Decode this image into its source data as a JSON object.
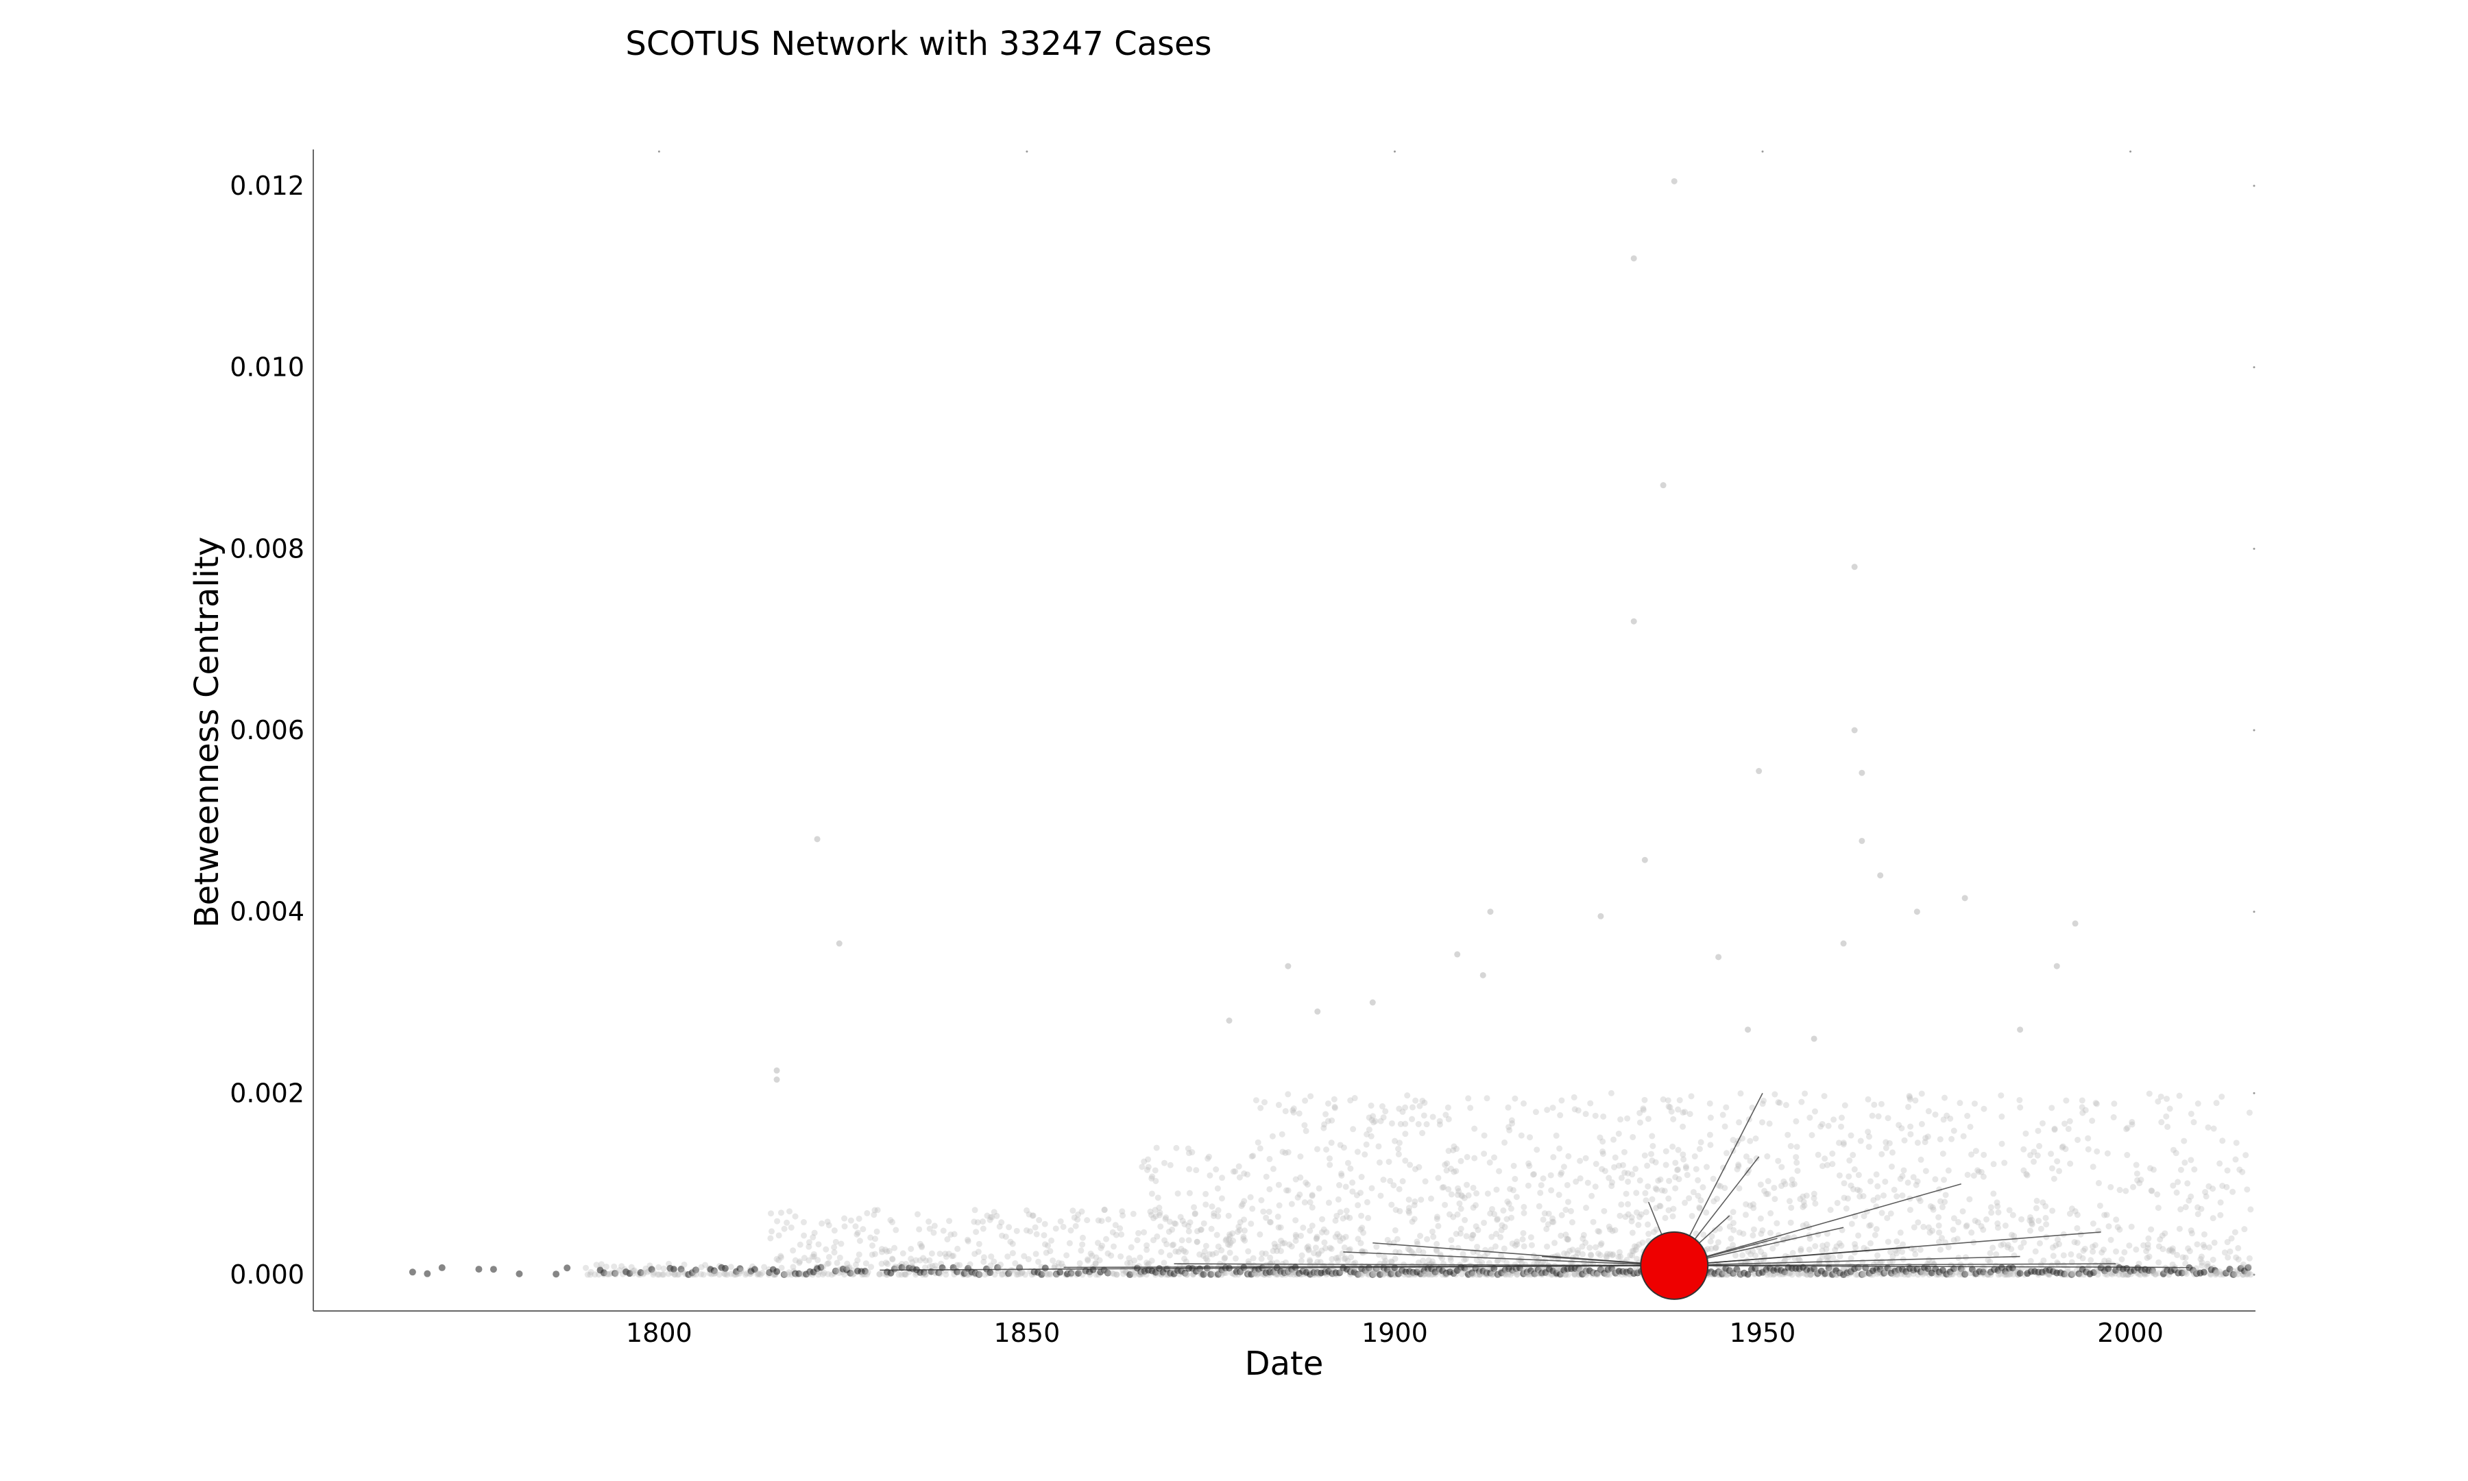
{
  "chart_data": {
    "type": "scatter",
    "title": "SCOTUS Network with 33247 Cases",
    "xlabel": "Date",
    "ylabel": "Betweenness Centrality",
    "xlim": [
      1753,
      2017
    ],
    "ylim": [
      -0.0004,
      0.0124
    ],
    "xticks": [
      1800,
      1850,
      1900,
      1950,
      2000
    ],
    "xtick_labels": [
      "1800",
      "1850",
      "1900",
      "1950",
      "2000"
    ],
    "yticks": [
      0.0,
      0.002,
      0.004,
      0.006,
      0.008,
      0.01,
      0.012
    ],
    "ytick_labels": [
      "0.000",
      "0.002",
      "0.004",
      "0.006",
      "0.008",
      "0.010",
      "0.012"
    ],
    "grid": false,
    "point_color": "#bbbbbb",
    "baseline_color": "#222222",
    "highlight_color": "#ee0000",
    "highlight": {
      "x": 1938,
      "y": 0.0001
    },
    "outliers": [
      {
        "x": 1938,
        "y": 0.01205
      },
      {
        "x": 1932.5,
        "y": 0.0112
      },
      {
        "x": 1936.5,
        "y": 0.0087
      },
      {
        "x": 1962.5,
        "y": 0.0078
      },
      {
        "x": 1932.5,
        "y": 0.0072
      },
      {
        "x": 1962.5,
        "y": 0.006
      },
      {
        "x": 1949.5,
        "y": 0.00555
      },
      {
        "x": 1963.5,
        "y": 0.00553
      },
      {
        "x": 1821.5,
        "y": 0.0048
      },
      {
        "x": 1963.5,
        "y": 0.00478
      },
      {
        "x": 1934,
        "y": 0.00457
      },
      {
        "x": 1966,
        "y": 0.0044
      },
      {
        "x": 1977.5,
        "y": 0.00415
      },
      {
        "x": 1913,
        "y": 0.004
      },
      {
        "x": 1971,
        "y": 0.004
      },
      {
        "x": 1928,
        "y": 0.00395
      },
      {
        "x": 1992.5,
        "y": 0.00387
      },
      {
        "x": 1961,
        "y": 0.00365
      },
      {
        "x": 1824.5,
        "y": 0.00365
      },
      {
        "x": 1908.5,
        "y": 0.00353
      },
      {
        "x": 1944,
        "y": 0.0035
      },
      {
        "x": 1885.5,
        "y": 0.0034
      },
      {
        "x": 1912,
        "y": 0.0033
      },
      {
        "x": 1990,
        "y": 0.0034
      },
      {
        "x": 1897,
        "y": 0.003
      },
      {
        "x": 1889.5,
        "y": 0.0029
      },
      {
        "x": 1877.5,
        "y": 0.0028
      },
      {
        "x": 1985,
        "y": 0.0027
      },
      {
        "x": 1957,
        "y": 0.0026
      },
      {
        "x": 1948,
        "y": 0.0027
      },
      {
        "x": 1816,
        "y": 0.00225
      },
      {
        "x": 1816,
        "y": 0.00215
      }
    ],
    "citation_lines": [
      {
        "x1": 1938,
        "y1": 0.0001,
        "x2": 1950,
        "y2": 0.002
      },
      {
        "x1": 1938,
        "y1": 0.0001,
        "x2": 1949.5,
        "y2": 0.0013
      },
      {
        "x1": 1938,
        "y1": 0.0001,
        "x2": 1977,
        "y2": 0.001
      },
      {
        "x1": 1938,
        "y1": 0.0001,
        "x2": 1945.5,
        "y2": 0.00065
      },
      {
        "x1": 1938,
        "y1": 0.0001,
        "x2": 1961,
        "y2": 0.00052
      },
      {
        "x1": 1938,
        "y1": 0.0001,
        "x2": 1996,
        "y2": 0.00047
      },
      {
        "x1": 1938,
        "y1": 0.0001,
        "x2": 1934.5,
        "y2": 0.0008
      },
      {
        "x1": 1938,
        "y1": 0.0001,
        "x2": 1952,
        "y2": 0.0004
      },
      {
        "x1": 1938,
        "y1": 0.0001,
        "x2": 1985,
        "y2": 0.0002
      },
      {
        "x1": 1938,
        "y1": 0.0001,
        "x2": 1893,
        "y2": 0.00025
      },
      {
        "x1": 1938,
        "y1": 0.0001,
        "x2": 1897,
        "y2": 0.00035
      },
      {
        "x1": 1938,
        "y1": 0.0001,
        "x2": 1920,
        "y2": 0.0002
      },
      {
        "x1": 1938,
        "y1": 0.0001,
        "x2": 1870,
        "y2": 0.00012
      },
      {
        "x1": 1938,
        "y1": 0.0001,
        "x2": 1855,
        "y2": 8e-05
      },
      {
        "x1": 1938,
        "y1": 0.0001,
        "x2": 1830,
        "y2": 5e-05
      },
      {
        "x1": 1938,
        "y1": 0.0001,
        "x2": 1998,
        "y2": 0.00012
      },
      {
        "x1": 1938,
        "y1": 0.0001,
        "x2": 2008,
        "y2": 8e-05
      },
      {
        "x1": 1938,
        "y1": 0.0001,
        "x2": 1970,
        "y2": 0.0003
      }
    ]
  }
}
